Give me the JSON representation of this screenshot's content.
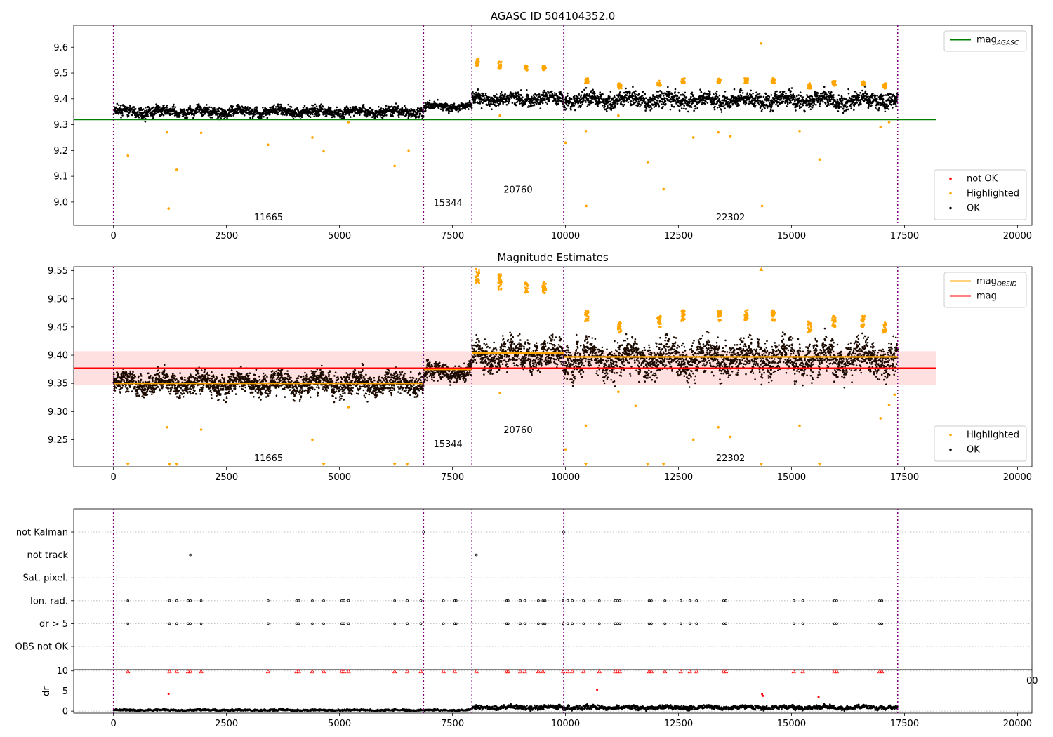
{
  "figure": {
    "panels": [
      {
        "id": "p1",
        "title": "AGASC ID 504104352.0"
      },
      {
        "id": "p2",
        "title": "Magnitude Estimates"
      },
      {
        "id": "p3",
        "title": ""
      },
      {
        "id": "p4",
        "title": ""
      }
    ]
  },
  "chart_data": [
    {
      "type": "scatter",
      "title": "AGASC ID 504104352.0",
      "xlabel": "",
      "ylabel": "",
      "xlim": [
        -880,
        20320
      ],
      "ylim": [
        8.91,
        9.685
      ],
      "xticks": [
        0,
        2500,
        5000,
        7500,
        10000,
        12500,
        15000,
        17500,
        20000
      ],
      "yticks": [
        9.0,
        9.1,
        9.2,
        9.3,
        9.4,
        9.5,
        9.6
      ],
      "grid": false,
      "colors": {
        "not_ok": "#ff0000",
        "highlighted": "#ffa500",
        "ok": "#000000",
        "mag_agasc": "#008000",
        "obsid_boundary": "#800080"
      },
      "hlines": [
        {
          "name": "mag_AGASC",
          "y": 9.32,
          "x": [
            -880,
            18200
          ]
        }
      ],
      "obsid_boundaries": [
        0,
        6860,
        7930,
        9960,
        17350
      ],
      "segments": [
        {
          "obsid": "11665",
          "x": [
            0,
            6860
          ],
          "mean": 9.35,
          "spread": 0.013
        },
        {
          "obsid": "15344",
          "x": [
            6860,
            7930
          ],
          "mean": 9.37,
          "spread": 0.01
        },
        {
          "obsid": "20760",
          "x": [
            7930,
            9960
          ],
          "mean": 9.4,
          "spread": 0.017
        },
        {
          "obsid": "22302",
          "x": [
            9960,
            17350
          ],
          "mean": 9.395,
          "spread": 0.02
        }
      ],
      "obsid_labels": [
        {
          "text": "11665",
          "x": 3430,
          "y": 8.94
        },
        {
          "text": "15344",
          "x": 7400,
          "y": 8.995
        },
        {
          "text": "20760",
          "x": 8950,
          "y": 9.048
        },
        {
          "text": "22302",
          "x": 13650,
          "y": 8.94
        }
      ],
      "highlighted_outliers": [
        [
          320,
          9.18
        ],
        [
          1190,
          9.27
        ],
        [
          1220,
          8.975
        ],
        [
          1400,
          9.125
        ],
        [
          1940,
          9.268
        ],
        [
          3420,
          9.222
        ],
        [
          4400,
          9.25
        ],
        [
          4650,
          9.197
        ],
        [
          5200,
          9.31
        ],
        [
          6220,
          9.14
        ],
        [
          6530,
          9.2
        ],
        [
          8550,
          9.335
        ],
        [
          10000,
          9.23
        ],
        [
          10450,
          9.275
        ],
        [
          10460,
          8.985
        ],
        [
          11170,
          9.335
        ],
        [
          11820,
          9.155
        ],
        [
          12170,
          9.05
        ],
        [
          12830,
          9.25
        ],
        [
          13380,
          9.27
        ],
        [
          13650,
          9.255
        ],
        [
          14330,
          9.615
        ],
        [
          14350,
          8.985
        ],
        [
          15180,
          9.275
        ],
        [
          15620,
          9.165
        ],
        [
          16970,
          9.29
        ],
        [
          17160,
          9.31
        ]
      ],
      "highlighted_bursts": [
        [
          8050,
          9.54,
          0.03
        ],
        [
          8550,
          9.53,
          0.03
        ],
        [
          9130,
          9.52,
          0.02
        ],
        [
          9530,
          9.52,
          0.02
        ],
        [
          10470,
          9.47,
          0.02
        ],
        [
          11200,
          9.45,
          0.02
        ],
        [
          12070,
          9.46,
          0.02
        ],
        [
          12600,
          9.47,
          0.02
        ],
        [
          13400,
          9.47,
          0.02
        ],
        [
          14000,
          9.47,
          0.02
        ],
        [
          14600,
          9.47,
          0.02
        ],
        [
          15400,
          9.45,
          0.02
        ],
        [
          15940,
          9.46,
          0.02
        ],
        [
          16580,
          9.46,
          0.02
        ],
        [
          17060,
          9.45,
          0.02
        ]
      ],
      "legends": [
        {
          "position": "upper right",
          "entries": [
            {
              "label": "mag",
              "sub": "AGASC",
              "kind": "line",
              "color": "#008000"
            }
          ]
        },
        {
          "position": "lower right",
          "entries": [
            {
              "label": "not OK",
              "kind": "dot",
              "color": "#ff0000"
            },
            {
              "label": "Highlighted",
              "kind": "dot",
              "color": "#ffa500"
            },
            {
              "label": "OK",
              "kind": "dot",
              "color": "#000000"
            }
          ]
        }
      ]
    },
    {
      "type": "scatter",
      "title": "Magnitude Estimates",
      "xlabel": "",
      "ylabel": "",
      "xlim": [
        -880,
        20320
      ],
      "ylim": [
        9.202,
        9.557
      ],
      "xticks": [
        0,
        2500,
        5000,
        7500,
        10000,
        12500,
        15000,
        17500,
        20000
      ],
      "yticks": [
        9.25,
        9.3,
        9.35,
        9.4,
        9.45,
        9.5,
        9.55
      ],
      "grid": false,
      "colors": {
        "highlighted": "#ffa500",
        "ok": "#000000",
        "mag": "#ff0000",
        "mag_band": "#ffe0e0",
        "mag_obsid": "#ffa500",
        "obsid_boundary": "#800080"
      },
      "mag": {
        "value": 9.377,
        "band": [
          9.347,
          9.407
        ],
        "x": [
          -880,
          18200
        ]
      },
      "mag_obsid": [
        {
          "x": [
            0,
            6860
          ],
          "y": 9.35
        },
        {
          "x": [
            6860,
            7930
          ],
          "y": 9.375
        },
        {
          "x": [
            7930,
            9960
          ],
          "y": 9.404
        },
        {
          "x": [
            9960,
            17350
          ],
          "y": 9.397
        }
      ],
      "obsid_boundaries": [
        0,
        6860,
        7930,
        9960,
        17350
      ],
      "obsid_labels": [
        {
          "text": "11665",
          "x": 3430,
          "y": 9.217
        },
        {
          "text": "15344",
          "x": 7400,
          "y": 9.242
        },
        {
          "text": "20760",
          "x": 8950,
          "y": 9.267
        },
        {
          "text": "22302",
          "x": 13650,
          "y": 9.217
        }
      ],
      "below_range_markers": [
        320,
        1240,
        1400,
        4650,
        6220,
        6500,
        10450,
        11820,
        12170,
        14330,
        15620
      ],
      "above_range_markers": [
        14330
      ],
      "highlighted_outliers": [
        [
          1190,
          9.272
        ],
        [
          1940,
          9.268
        ],
        [
          4400,
          9.25
        ],
        [
          5200,
          9.308
        ],
        [
          8550,
          9.333
        ],
        [
          10000,
          9.233
        ],
        [
          10450,
          9.275
        ],
        [
          11170,
          9.335
        ],
        [
          11550,
          9.31
        ],
        [
          12830,
          9.25
        ],
        [
          13380,
          9.272
        ],
        [
          13650,
          9.255
        ],
        [
          15180,
          9.275
        ],
        [
          16970,
          9.288
        ],
        [
          17160,
          9.312
        ],
        [
          17280,
          9.33
        ]
      ],
      "highlighted_bursts": [
        [
          8050,
          9.54,
          0.03
        ],
        [
          8550,
          9.53,
          0.03
        ],
        [
          9130,
          9.52,
          0.02
        ],
        [
          9530,
          9.52,
          0.02
        ],
        [
          10470,
          9.47,
          0.02
        ],
        [
          11200,
          9.45,
          0.02
        ],
        [
          12070,
          9.46,
          0.02
        ],
        [
          12600,
          9.47,
          0.02
        ],
        [
          13400,
          9.47,
          0.02
        ],
        [
          14000,
          9.47,
          0.02
        ],
        [
          14600,
          9.47,
          0.02
        ],
        [
          15400,
          9.45,
          0.02
        ],
        [
          15940,
          9.46,
          0.02
        ],
        [
          16580,
          9.46,
          0.02
        ],
        [
          17060,
          9.45,
          0.02
        ]
      ],
      "legends": [
        {
          "position": "upper right",
          "entries": [
            {
              "label": "mag",
              "sub": "OBSID",
              "kind": "line",
              "color": "#ffa500"
            },
            {
              "label": "mag",
              "kind": "line",
              "color": "#ff0000"
            }
          ]
        },
        {
          "position": "lower right",
          "entries": [
            {
              "label": "Highlighted",
              "kind": "dot",
              "color": "#ffa500"
            },
            {
              "label": "OK",
              "kind": "dot",
              "color": "#000000"
            }
          ]
        }
      ]
    },
    {
      "type": "scatter",
      "title": "",
      "xlabel": "",
      "ylabel": "",
      "xlim": [
        -880,
        20320
      ],
      "grid": true,
      "categories": [
        "not Kalman",
        "not track",
        "Sat. pixel.",
        "Ion. rad.",
        "dr > 5",
        "OBS not OK"
      ],
      "obsid_boundaries": [
        0,
        6860,
        7930,
        9960,
        17350
      ],
      "flags": [
        {
          "category": "not Kalman",
          "x": [
            6860,
            9960
          ]
        },
        {
          "category": "not track",
          "x": [
            1700,
            8030
          ]
        },
        {
          "category": "Sat. pixel.",
          "x": []
        },
        {
          "category": "Ion. rad.",
          "x": [
            320,
            1240,
            1400,
            1650,
            1700,
            1940,
            3420,
            4050,
            4100,
            4400,
            4650,
            5050,
            5100,
            5200,
            6220,
            6500,
            6800,
            7300,
            7550,
            7580,
            8700,
            8730,
            9000,
            9100,
            9400,
            9500,
            9550,
            9950,
            10050,
            10150,
            10400,
            10750,
            11100,
            11150,
            11200,
            11850,
            11900,
            12200,
            12550,
            12750,
            12900,
            13500,
            13550,
            15050,
            15250,
            15950,
            16000,
            16950,
            17000
          ]
        },
        {
          "category": "dr > 5",
          "x": [
            320,
            1240,
            1400,
            1650,
            1700,
            1940,
            3420,
            4050,
            4100,
            4400,
            4650,
            5050,
            5100,
            5200,
            6220,
            6500,
            6800,
            7300,
            7550,
            7580,
            8700,
            8730,
            9000,
            9100,
            9400,
            9500,
            9550,
            9950,
            10050,
            10150,
            10400,
            10750,
            11100,
            11150,
            11200,
            11850,
            11900,
            12200,
            12550,
            12750,
            12900,
            13500,
            13550,
            15050,
            15250,
            15950,
            16000,
            16950,
            17000
          ]
        },
        {
          "category": "OBS not OK",
          "x": []
        }
      ]
    },
    {
      "type": "scatter",
      "title": "",
      "xlabel": "",
      "ylabel": "dr",
      "xlim": [
        -880,
        20320
      ],
      "ylim": [
        -0.5,
        10.3
      ],
      "xticks": [
        0,
        2500,
        5000,
        7500,
        10000,
        12500,
        15000,
        17500,
        20000
      ],
      "yticks": [
        0,
        5,
        10
      ],
      "grid": true,
      "obsid_boundaries": [
        0,
        6860,
        7930,
        9960,
        17350
      ],
      "clipped_markers": [
        320,
        1240,
        1400,
        1650,
        1700,
        1940,
        3420,
        4050,
        4100,
        4400,
        4650,
        5050,
        5100,
        5200,
        6220,
        6500,
        6800,
        7300,
        7550,
        8030,
        8700,
        8730,
        9000,
        9100,
        9400,
        9500,
        9950,
        10050,
        10150,
        10400,
        10750,
        11100,
        11150,
        11200,
        11850,
        11900,
        12200,
        12550,
        12750,
        12900,
        13500,
        13550,
        15050,
        15250,
        15950,
        16000,
        16950,
        17000
      ],
      "dr_points": [
        [
          1220,
          4.3
        ],
        [
          10700,
          5.3
        ],
        [
          14350,
          4.2
        ],
        [
          14370,
          3.8
        ],
        [
          15600,
          3.5
        ]
      ],
      "dr_segments": [
        {
          "x": [
            0,
            7930
          ],
          "mean": 0.25,
          "spread": 0.15
        },
        {
          "x": [
            7930,
            17350
          ],
          "mean": 0.9,
          "spread": 0.35
        }
      ]
    }
  ],
  "overflow_label": {
    "text": "00"
  }
}
